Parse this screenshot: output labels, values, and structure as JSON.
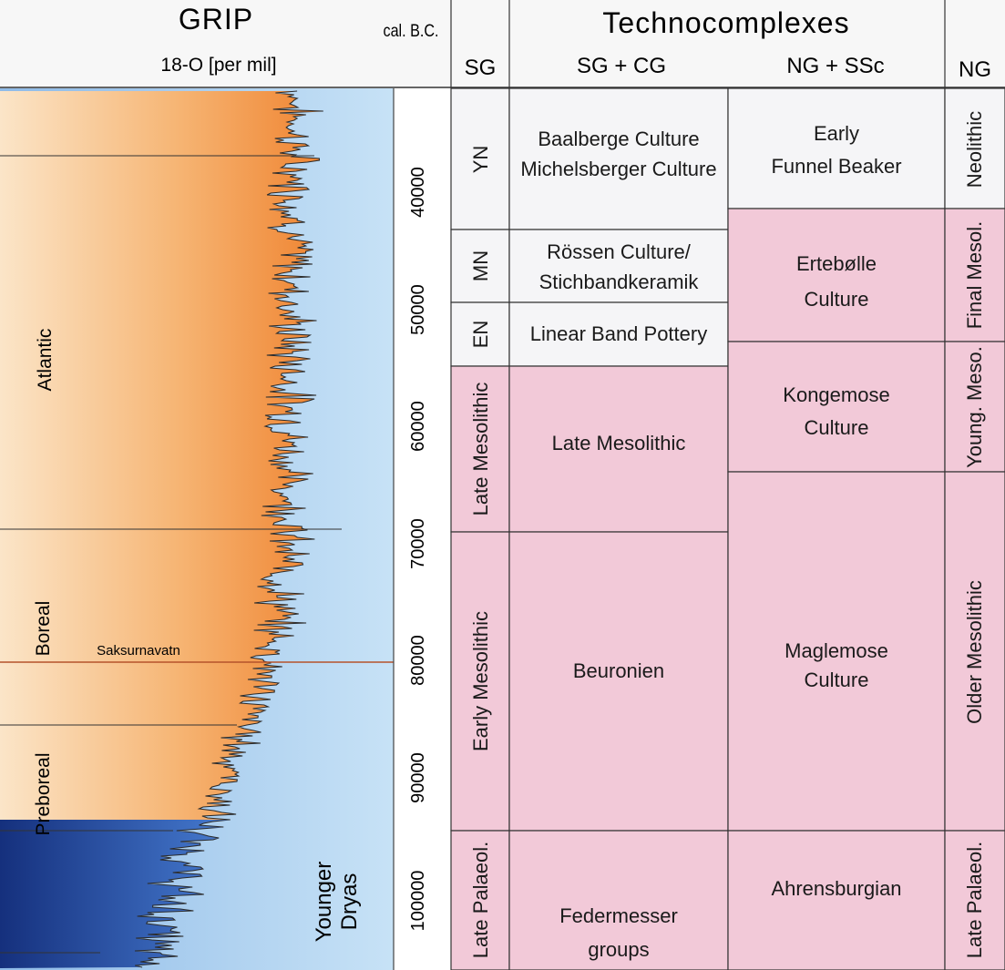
{
  "header": {
    "grip_title": "GRIP",
    "grip_subtitle": "18-O [per mil]",
    "calbc_label": "cal. B.C.",
    "techno_title": "Technocomplexes",
    "col_sg": "SG",
    "col_sgcg": "SG + CG",
    "col_ngssc": "NG + SSc",
    "col_ng": "NG"
  },
  "depth_axis": {
    "ticks": [
      "40000",
      "50000",
      "60000",
      "70000",
      "80000",
      "90000",
      "100000"
    ]
  },
  "climate_zones": {
    "atlantic": "Atlantic",
    "boreal": "Boreal",
    "saksurnavatn": "Saksurnavatn",
    "preboreal": "Preboreal",
    "younger_dryas_line1": "Younger",
    "younger_dryas_line2": "Dryas"
  },
  "sg_periods": {
    "yn": "YN",
    "mn": "MN",
    "en": "EN",
    "late_mesolithic": "Late Mesolithic",
    "early_mesolithic": "Early Mesolithic",
    "late_palaeol": "Late Palaeol."
  },
  "sgcg_cultures": {
    "baalberge": "Baalberge Culture",
    "michelsberger": "Michelsberger Culture",
    "roessen": "Rössen Culture/",
    "stichband": "Stichbandkeramik",
    "linear": "Linear Band Pottery",
    "late_meso": "Late Mesolithic",
    "beuronien": "Beuronien",
    "federmesser1": "Federmesser",
    "federmesser2": "groups"
  },
  "ngssc_cultures": {
    "early": "Early",
    "funnel": "Funnel Beaker",
    "ertebolle1": "Ertebølle",
    "ertebolle2": "Culture",
    "kongemose1": "Kongemose",
    "kongemose2": "Culture",
    "maglemose1": "Maglemose",
    "maglemose2": "Culture",
    "ahrensburgian": "Ahrensburgian"
  },
  "ng_periods": {
    "neolithic": "Neolithic",
    "final_mesol": "Final Mesol.",
    "young_meso": "Young. Meso.",
    "older_meso": "Older Mesolithic",
    "late_palaeol": "Late Palaeol."
  },
  "colors": {
    "pink": "#f2c9d8",
    "white_cell": "#f5f5f7",
    "header_bg": "#f7f7f7",
    "warm": "#ee7a1e",
    "cold": "#1f3f9e",
    "ice": "#b5d8f2"
  }
}
